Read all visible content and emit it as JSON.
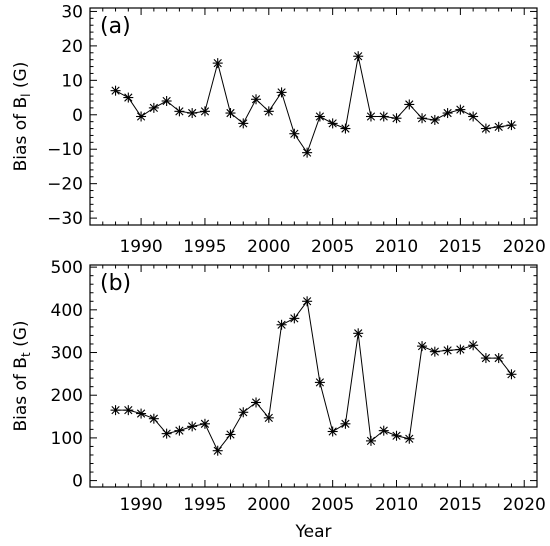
{
  "chart_data": [
    {
      "type": "line",
      "panel_label": "(a)",
      "xlabel": "",
      "ylabel_main": "Bias of B",
      "ylabel_sub": "l",
      "ylabel_unit": " (G)",
      "xlim": [
        1986,
        2021
      ],
      "ylim": [
        -32,
        31
      ],
      "xticks": [
        1990,
        1995,
        2000,
        2005,
        2010,
        2015,
        2020
      ],
      "xtick_labels": [
        "1990",
        "1995",
        "2000",
        "2005",
        "2010",
        "2015",
        "2020"
      ],
      "yticks": [
        -30,
        -20,
        -10,
        0,
        10,
        20,
        30
      ],
      "ytick_labels": [
        "−30",
        "−20",
        "−10",
        "0",
        "10",
        "20",
        "30"
      ],
      "marker": "asterisk",
      "x": [
        1988,
        1989,
        1990,
        1991,
        1992,
        1993,
        1994,
        1995,
        1996,
        1997,
        1998,
        1999,
        2000,
        2001,
        2002,
        2003,
        2004,
        2005,
        2006,
        2007,
        2008,
        2009,
        2010,
        2011,
        2012,
        2013,
        2014,
        2015,
        2016,
        2017,
        2018,
        2019
      ],
      "y": [
        7,
        5,
        -0.5,
        2,
        4,
        1,
        0.5,
        1,
        15,
        0.5,
        -2.5,
        4.5,
        1,
        6.5,
        -5.5,
        -11,
        -0.5,
        -2.5,
        -4,
        17,
        -0.5,
        -0.5,
        -1,
        3,
        -1,
        -1.5,
        0.5,
        1.5,
        -0.5,
        -4,
        -3.5,
        -3
      ]
    },
    {
      "type": "line",
      "panel_label": "(b)",
      "xlabel": "Year",
      "ylabel_main": "Bias of B",
      "ylabel_sub": "t",
      "ylabel_unit": " (G)",
      "xlim": [
        1986,
        2021
      ],
      "ylim": [
        -15,
        505
      ],
      "xticks": [
        1990,
        1995,
        2000,
        2005,
        2010,
        2015,
        2020
      ],
      "xtick_labels": [
        "1990",
        "1995",
        "2000",
        "2005",
        "2010",
        "2015",
        "2020"
      ],
      "yticks": [
        0,
        100,
        200,
        300,
        400,
        500
      ],
      "ytick_labels": [
        "0",
        "100",
        "200",
        "300",
        "400",
        "500"
      ],
      "marker": "asterisk",
      "x": [
        1988,
        1989,
        1990,
        1991,
        1992,
        1993,
        1994,
        1995,
        1996,
        1997,
        1998,
        1999,
        2000,
        2001,
        2002,
        2003,
        2004,
        2005,
        2006,
        2007,
        2008,
        2009,
        2010,
        2011,
        2012,
        2013,
        2014,
        2015,
        2016,
        2017,
        2018,
        2019
      ],
      "y": [
        165,
        165,
        157,
        145,
        110,
        117,
        127,
        133,
        70,
        108,
        160,
        183,
        147,
        365,
        380,
        420,
        230,
        115,
        133,
        345,
        93,
        117,
        105,
        98,
        315,
        302,
        305,
        307,
        317,
        287,
        287,
        249
      ]
    }
  ]
}
